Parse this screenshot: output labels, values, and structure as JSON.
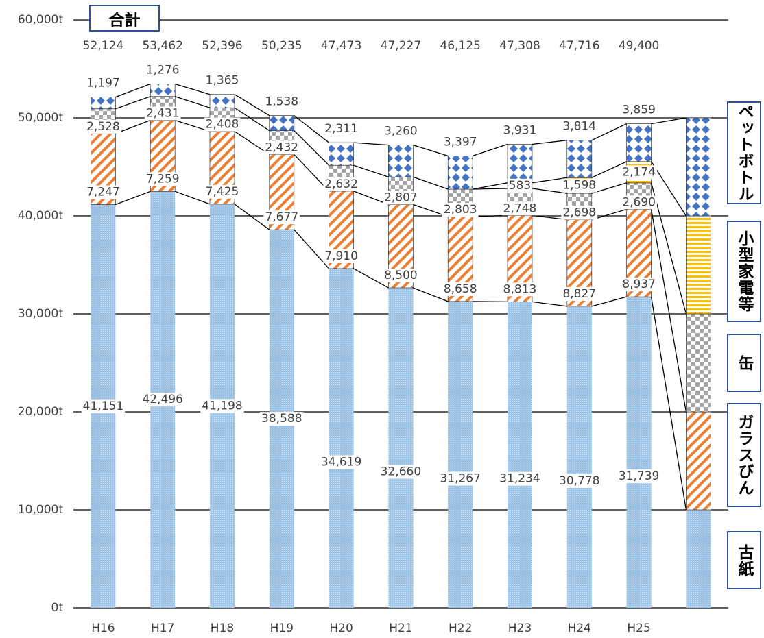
{
  "chart_data": {
    "type": "stacked-bar",
    "total_label": "合計",
    "categories": [
      "H16",
      "H17",
      "H18",
      "H19",
      "H20",
      "H21",
      "H22",
      "H23",
      "H24",
      "H25"
    ],
    "series": [
      {
        "name": "古紙",
        "color": "#9dc3e6",
        "values": [
          41151,
          42496,
          41198,
          38588,
          34619,
          32660,
          31267,
          31234,
          30778,
          31739
        ],
        "value_labels": [
          "41,151",
          "42,496",
          "41,198",
          "38,588",
          "34,619",
          "32,660",
          "31,267",
          "31,234",
          "30,778",
          "31,739"
        ]
      },
      {
        "name": "ガラスびん",
        "color": "#ed7d31",
        "values": [
          7247,
          7259,
          7425,
          7677,
          7910,
          8500,
          8658,
          8813,
          8827,
          8937
        ],
        "value_labels": [
          "7,247",
          "7,259",
          "7,425",
          "7,677",
          "7,910",
          "8,500",
          "8,658",
          "8,813",
          "8,827",
          "8,937"
        ]
      },
      {
        "name": "缶",
        "color": "#a5a5a5",
        "values": [
          2528,
          2431,
          2408,
          2432,
          2632,
          2807,
          2803,
          2748,
          2698,
          2690
        ],
        "value_labels": [
          "2,528",
          "2,431",
          "2,408",
          "2,432",
          "2,632",
          "2,807",
          "2,803",
          "2,748",
          "2,698",
          "2,690"
        ]
      },
      {
        "name": "小型家電等",
        "color": "#ffc000",
        "values": [
          null,
          null,
          null,
          null,
          null,
          null,
          null,
          583,
          1598,
          2174
        ],
        "value_labels": [
          null,
          null,
          null,
          null,
          null,
          null,
          null,
          "583",
          "1,598",
          "2,174"
        ]
      },
      {
        "name": "ペットボトル",
        "color": "#4472c4",
        "values": [
          1197,
          1276,
          1365,
          1538,
          2311,
          3260,
          3397,
          3931,
          3814,
          3859
        ],
        "value_labels": [
          "1,197",
          "1,276",
          "1,365",
          "1,538",
          "2,311",
          "3,260",
          "3,397",
          "3,931",
          "3,814",
          "3,859"
        ]
      }
    ],
    "totals": [
      52124,
      53462,
      52396,
      50235,
      47473,
      47227,
      46125,
      47308,
      47716,
      49400
    ],
    "total_labels": [
      "52,124",
      "53,462",
      "52,396",
      "50,235",
      "47,473",
      "47,227",
      "46,125",
      "47,308",
      "47,716",
      "49,400"
    ],
    "ylim": [
      0,
      60000
    ],
    "yticks": [
      {
        "value": 0,
        "label": "0t"
      },
      {
        "value": 10000,
        "label": "10,000t"
      },
      {
        "value": 20000,
        "label": "20,000t"
      },
      {
        "value": 30000,
        "label": "30,000t"
      },
      {
        "value": 40000,
        "label": "40,000t"
      },
      {
        "value": 50000,
        "label": "50,000t"
      },
      {
        "value": 60000,
        "label": "60,000t"
      }
    ],
    "grid": true
  }
}
